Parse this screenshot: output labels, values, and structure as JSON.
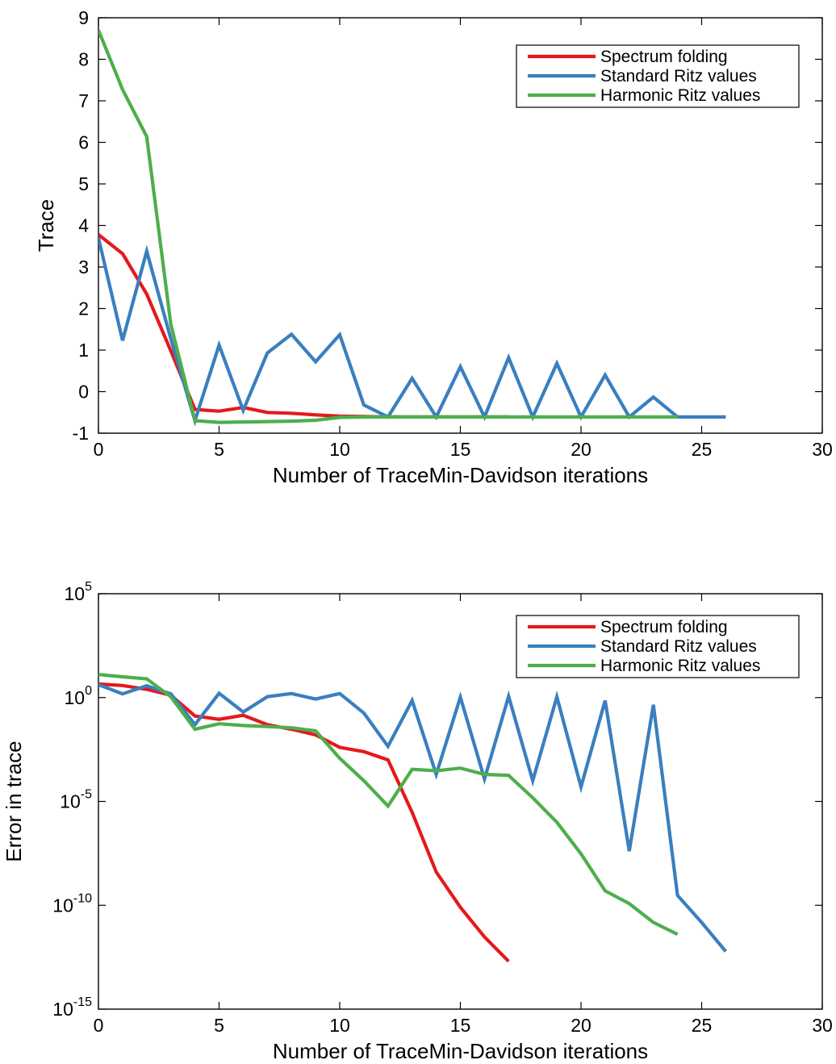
{
  "chart_data": [
    {
      "type": "line",
      "xlabel": "Number of TraceMin-Davidson iterations",
      "ylabel": "Trace",
      "xlim": [
        0,
        30
      ],
      "ylim": [
        -1,
        9
      ],
      "yscale": "linear",
      "xticks": [
        0,
        5,
        10,
        15,
        20,
        25,
        30
      ],
      "yticks": [
        -1,
        0,
        1,
        2,
        3,
        4,
        5,
        6,
        7,
        8,
        9
      ],
      "grid": false,
      "legend": "top-right",
      "series": [
        {
          "name": "Spectrum folding",
          "color": "#e31a1c",
          "x": [
            0,
            1,
            2,
            3,
            4,
            5,
            6,
            7,
            8,
            9,
            10,
            11,
            12,
            13,
            14,
            15,
            16,
            17
          ],
          "y": [
            3.78,
            3.32,
            2.35,
            0.98,
            -0.43,
            -0.47,
            -0.38,
            -0.5,
            -0.52,
            -0.56,
            -0.59,
            -0.6,
            -0.61,
            -0.61,
            -0.61,
            -0.61,
            -0.61,
            -0.61
          ]
        },
        {
          "name": "Standard Ritz values",
          "color": "#3a7fbf",
          "x": [
            0,
            1,
            2,
            3,
            4,
            5,
            6,
            7,
            8,
            9,
            10,
            11,
            12,
            13,
            14,
            15,
            16,
            17,
            18,
            19,
            20,
            21,
            22,
            23,
            24,
            25,
            26
          ],
          "y": [
            3.7,
            1.23,
            3.38,
            1.27,
            -0.7,
            1.12,
            -0.45,
            0.93,
            1.38,
            0.72,
            1.37,
            -0.32,
            -0.61,
            0.32,
            -0.61,
            0.6,
            -0.61,
            0.82,
            -0.61,
            0.68,
            -0.61,
            0.4,
            -0.61,
            -0.13,
            -0.61,
            -0.61,
            -0.61
          ]
        },
        {
          "name": "Harmonic Ritz values",
          "color": "#4daf4a",
          "x": [
            0,
            1,
            2,
            3,
            4,
            5,
            6,
            7,
            8,
            9,
            10,
            11,
            12,
            13,
            14,
            15,
            16,
            17,
            18,
            19,
            20,
            21,
            22,
            23,
            24
          ],
          "y": [
            8.7,
            7.27,
            6.14,
            1.62,
            -0.7,
            -0.74,
            -0.73,
            -0.72,
            -0.71,
            -0.69,
            -0.62,
            -0.61,
            -0.61,
            -0.61,
            -0.61,
            -0.61,
            -0.61,
            -0.61,
            -0.61,
            -0.61,
            -0.61,
            -0.61,
            -0.61,
            -0.61,
            -0.61
          ]
        }
      ]
    },
    {
      "type": "line",
      "xlabel": "Number of TraceMin-Davidson iterations",
      "ylabel": "Error in trace",
      "xlim": [
        0,
        30
      ],
      "ylim": [
        1e-15,
        100000
      ],
      "yscale": "log",
      "xticks": [
        0,
        5,
        10,
        15,
        20,
        25,
        30
      ],
      "ytick_base": "10",
      "ytick_exponents": [
        "5",
        "0",
        "-5",
        "-10",
        "-15"
      ],
      "grid": false,
      "legend": "top-right",
      "series": [
        {
          "name": "Spectrum folding",
          "color": "#e31a1c",
          "x": [
            0,
            1,
            2,
            3,
            4,
            5,
            6,
            7,
            8,
            9,
            10,
            11,
            12,
            13,
            14,
            15,
            16,
            17
          ],
          "y": [
            4.5,
            3.8,
            2.5,
            1.3,
            0.13,
            0.09,
            0.14,
            0.05,
            0.03,
            0.016,
            0.004,
            0.0025,
            0.001,
            3e-06,
            4e-09,
            8e-11,
            3e-12,
            2e-13
          ]
        },
        {
          "name": "Standard Ritz values",
          "color": "#3a7fbf",
          "x": [
            0,
            1,
            2,
            3,
            4,
            5,
            6,
            7,
            8,
            9,
            10,
            11,
            12,
            13,
            14,
            15,
            16,
            17,
            18,
            19,
            20,
            21,
            22,
            23,
            24,
            25,
            26
          ],
          "y": [
            4.2,
            1.5,
            3.7,
            1.5,
            0.05,
            1.6,
            0.2,
            1.1,
            1.55,
            0.85,
            1.55,
            0.18,
            0.0045,
            0.72,
            0.0002,
            1.05,
            0.00012,
            1.15,
            0.0001,
            1.08,
            5e-05,
            0.72,
            4e-08,
            0.45,
            3e-10,
            1.5e-11,
            6e-13
          ]
        },
        {
          "name": "Harmonic Ritz values",
          "color": "#4daf4a",
          "x": [
            0,
            1,
            2,
            3,
            4,
            5,
            6,
            7,
            8,
            9,
            10,
            11,
            12,
            13,
            14,
            15,
            16,
            17,
            18,
            19,
            20,
            21,
            22,
            23,
            24
          ],
          "y": [
            13,
            10,
            8,
            1.1,
            0.03,
            0.055,
            0.045,
            0.04,
            0.035,
            0.025,
            0.0012,
            0.0001,
            6e-06,
            0.00035,
            0.0003,
            0.0004,
            0.0002,
            0.00018,
            1.5e-05,
            1e-06,
            3e-08,
            5e-10,
            1.2e-10,
            1.5e-11,
            4e-12
          ]
        }
      ]
    }
  ]
}
